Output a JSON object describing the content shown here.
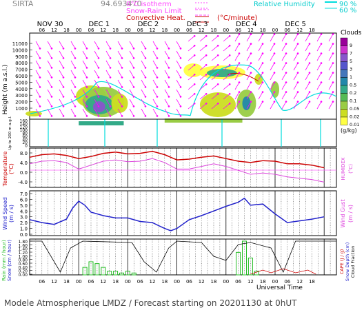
{
  "header": {
    "station": "SIRTA",
    "number": "94.693470",
    "isotherm_label": "0°C isotherm",
    "snow_rain_label": "Snow-Rain Limit",
    "convective_label": "Convective Heat.",
    "convective_unit": "(°C/minute)",
    "rh_label": "Relative Humidity",
    "rh_90": "90 %",
    "rh_60": "60 %"
  },
  "days": [
    "NOV 30",
    "DEC  1",
    "DEC  2",
    "DEC  3",
    "DEC  4",
    "DEC  5"
  ],
  "hour_ticks": [
    "06",
    "12",
    "18",
    "00",
    "06",
    "12",
    "18",
    "00",
    "06",
    "12",
    "18",
    "00",
    "06",
    "12",
    "18",
    "00",
    "06",
    "12",
    "18",
    "00",
    "06",
    "12",
    "18"
  ],
  "colors": {
    "temperature": "#cc0000",
    "humidex": "#dd44dd",
    "wind": "#2222cc",
    "rain": "#22bb22",
    "wind_arrows": "#ff00ff",
    "rh": "#00dddd",
    "axis_labels": "#cc0000"
  },
  "panels": {
    "clouds": {
      "ylabel": "Height  (m a.s.l.)",
      "ylabel_low": "Up to 200 m a.g.l.",
      "yticks": [
        "11000",
        "10000",
        "9000",
        "8000",
        "7000",
        "6000",
        "5000",
        "4000",
        "3000",
        "2000",
        "1000"
      ],
      "yticks_low": [
        "160",
        "140",
        "120",
        "100",
        "80",
        "60",
        "40",
        "20",
        "0"
      ],
      "legend_title": "Clouds",
      "legend_levels": [
        "9",
        "7",
        "5",
        "3",
        "1",
        "0.5",
        "0.2",
        "0.1",
        "0.05",
        "0.02",
        "0.01"
      ],
      "legend_unit": "(g/kg)",
      "legend_colors": [
        "#990099",
        "#cc33cc",
        "#8855cc",
        "#5555cc",
        "#4477bb",
        "#2288aa",
        "#33aa88",
        "#55bb55",
        "#99cc44",
        "#ccdd22",
        "#ffff44"
      ]
    },
    "temperature": {
      "ylabel": "Temperature",
      "yunit": "(°C)",
      "ylabel_right": "HUMIDEX",
      "yunit_right": "(°C)",
      "yticks": [
        "8.0",
        "4.0",
        "0.0",
        "-4.0"
      ]
    },
    "wind": {
      "ylabel": "Wind Speed",
      "yunit": "(m / s)",
      "ylabel_right": "Wind Gust",
      "yunit_right": "(m / s)",
      "yticks": [
        "7.0",
        "6.0",
        "5.0",
        "4.0",
        "3.0",
        "2.0",
        "1.0",
        "0.0"
      ]
    },
    "precip": {
      "ylabel": "Rain  (mm / hour)",
      "ylabel2": "Snow (cm / hour)",
      "ylabel_right": "CAPE  (J / g)",
      "ylabel_right2": "Snow Depth (cm)",
      "ylabel_right3": "Cloud Fraction",
      "yticks": [
        "1.80",
        "1.60",
        "1.40",
        "1.20",
        "1.00",
        "0.80",
        "0.60",
        "0.40",
        "0.20",
        "0.00"
      ],
      "xlabel": "Universal Time"
    }
  },
  "footer": "Modele Atmospherique LMDZ / Forecast starting on 20201130 at 0hUT",
  "chart_data": [
    {
      "type": "line",
      "title": "Temperature",
      "x_unit": "hours since 2020-11-30 00 UT",
      "ylim": [
        -6,
        9
      ],
      "series": [
        {
          "name": "Temperature",
          "x": [
            0,
            6,
            12,
            18,
            24,
            30,
            36,
            42,
            48,
            54,
            60,
            66,
            72,
            78,
            84,
            90,
            96,
            102,
            108,
            114,
            120,
            126,
            132,
            138,
            144
          ],
          "values": [
            5.5,
            6.5,
            6.8,
            6.2,
            5.0,
            5.8,
            7.0,
            7.5,
            6.8,
            7.0,
            7.8,
            6.5,
            4.5,
            4.8,
            5.5,
            6.0,
            5.0,
            4.0,
            3.5,
            4.2,
            4.0,
            3.0,
            3.0,
            2.5,
            1.5
          ]
        },
        {
          "name": "HUMIDEX",
          "x": [
            0,
            6,
            12,
            18,
            24,
            30,
            36,
            42,
            48,
            54,
            60,
            66,
            72,
            78,
            84,
            90,
            96,
            102,
            108,
            114,
            120,
            126,
            132,
            138,
            144
          ],
          "values": [
            3.0,
            4.0,
            4.2,
            3.5,
            1.0,
            2.5,
            4.0,
            4.5,
            3.8,
            4.0,
            5.0,
            3.5,
            1.0,
            1.0,
            2.0,
            3.0,
            2.0,
            0.5,
            -1.0,
            -0.5,
            -1.0,
            -2.0,
            -2.5,
            -3.0,
            -4.0
          ]
        }
      ]
    },
    {
      "type": "line",
      "title": "Wind Speed",
      "x_unit": "hours since 2020-11-30 00 UT",
      "ylim": [
        0,
        7
      ],
      "series": [
        {
          "name": "Wind Speed",
          "x": [
            0,
            6,
            12,
            18,
            21,
            24,
            27,
            30,
            36,
            42,
            48,
            54,
            60,
            63,
            66,
            69,
            72,
            78,
            84,
            90,
            96,
            102,
            105,
            108,
            114,
            120,
            126,
            132,
            138,
            144
          ],
          "values": [
            2.5,
            2.0,
            1.7,
            2.6,
            4.5,
            5.7,
            5.0,
            3.8,
            3.2,
            2.8,
            2.8,
            2.2,
            2.0,
            1.5,
            1.0,
            0.6,
            1.0,
            2.5,
            3.2,
            4.0,
            4.8,
            5.5,
            6.2,
            5.0,
            5.2,
            3.5,
            2.0,
            2.3,
            2.6,
            3.0
          ]
        }
      ]
    },
    {
      "type": "bar",
      "title": "Rain",
      "x_unit": "hours since 2020-11-30 00 UT",
      "ylim": [
        0,
        1.8
      ],
      "series": [
        {
          "name": "Rain",
          "x": [
            27,
            30,
            33,
            36,
            39,
            42,
            45,
            48,
            51,
            102,
            105,
            108,
            111
          ],
          "values": [
            0.4,
            0.7,
            0.6,
            0.4,
            0.2,
            0.2,
            0.1,
            0.2,
            0.1,
            1.2,
            1.8,
            0.9,
            0.2
          ]
        }
      ]
    }
  ]
}
